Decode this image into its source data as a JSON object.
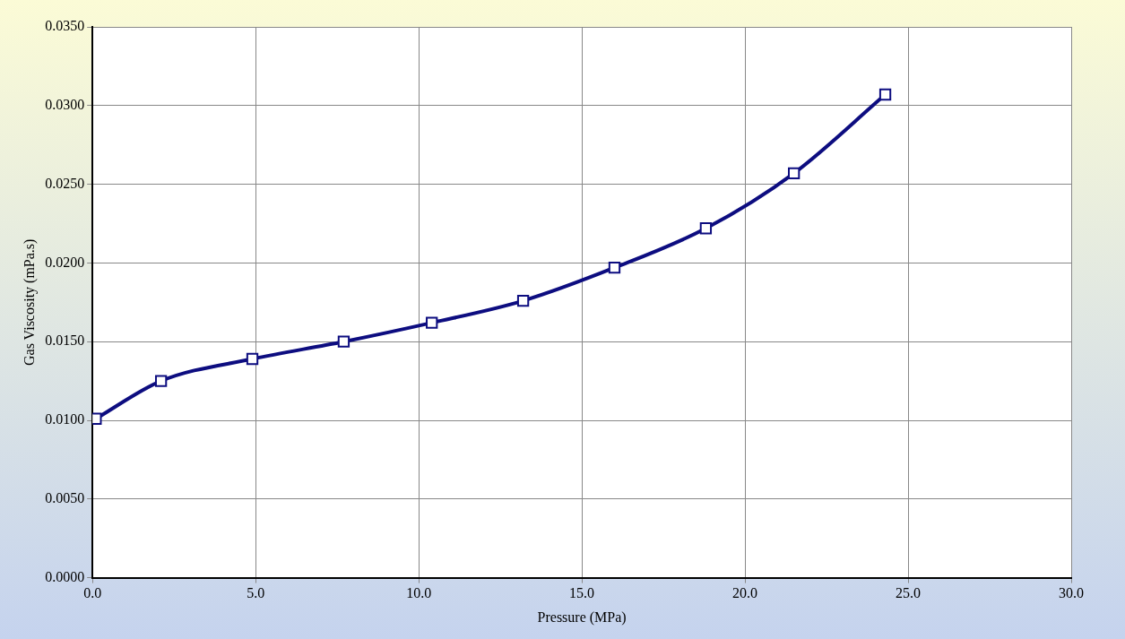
{
  "chart_data": {
    "type": "line",
    "xlabel": "Pressure (MPa)",
    "ylabel": "Gas Viscosity (mPa.s)",
    "x": [
      0.1,
      2.1,
      4.9,
      7.7,
      10.4,
      13.2,
      16.0,
      18.8,
      21.5,
      24.3
    ],
    "series": [
      {
        "color": "#0d0d80",
        "values": [
          0.0101,
          0.0125,
          0.0139,
          0.015,
          0.0162,
          0.0176,
          0.0197,
          0.0222,
          0.0257,
          0.0307
        ]
      }
    ],
    "xlim": [
      0,
      30
    ],
    "xticks": [
      {
        "value": 0,
        "label": "0.0"
      },
      {
        "value": 5,
        "label": "5.0"
      },
      {
        "value": 10,
        "label": "10.0"
      },
      {
        "value": 15,
        "label": "15.0"
      },
      {
        "value": 20,
        "label": "20.0"
      },
      {
        "value": 25,
        "label": "25.0"
      },
      {
        "value": 30,
        "label": "30.0"
      }
    ],
    "ylim": [
      0,
      0.035
    ],
    "yticks": [
      {
        "value": 0,
        "label": "0.0000"
      },
      {
        "value": 0.005,
        "label": "0.0050"
      },
      {
        "value": 0.01,
        "label": "0.0100"
      },
      {
        "value": 0.015,
        "label": "0.0150"
      },
      {
        "value": 0.02,
        "label": "0.0200"
      },
      {
        "value": 0.025,
        "label": "0.0250"
      },
      {
        "value": 0.03,
        "label": "0.0300"
      },
      {
        "value": 0.035,
        "label": "0.0350"
      }
    ],
    "grid": true,
    "legend": false,
    "marker": "square",
    "line_style": "solid"
  }
}
